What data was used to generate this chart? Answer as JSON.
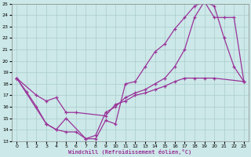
{
  "xlabel": "Windchill (Refroidissement éolien,°C)",
  "xlim": [
    -0.5,
    23.5
  ],
  "ylim": [
    13,
    25
  ],
  "xticks": [
    0,
    1,
    2,
    3,
    4,
    5,
    6,
    7,
    8,
    9,
    10,
    11,
    12,
    13,
    14,
    15,
    16,
    17,
    18,
    19,
    20,
    21,
    22,
    23
  ],
  "yticks": [
    13,
    14,
    15,
    16,
    17,
    18,
    19,
    20,
    21,
    22,
    23,
    24,
    25
  ],
  "bg_color": "#cce8e8",
  "line_color": "#993399",
  "grid_color": "#aacccc",
  "line1_x": [
    0,
    1,
    2,
    3,
    4,
    5,
    6,
    7,
    8,
    9,
    10,
    11,
    12,
    13,
    14,
    15,
    16,
    17,
    18,
    19,
    20,
    21,
    22,
    23
  ],
  "line1_y": [
    18.5,
    17.3,
    16.0,
    14.5,
    14.0,
    13.8,
    13.8,
    13.2,
    13.2,
    14.8,
    14.5,
    18.0,
    18.2,
    19.5,
    20.8,
    21.5,
    22.8,
    23.8,
    24.8,
    25.2,
    24.8,
    22.0,
    19.5,
    18.2
  ],
  "line2_x": [
    0,
    2,
    3,
    4,
    5,
    6,
    9,
    10,
    11,
    12,
    13,
    14,
    15,
    16,
    17,
    18,
    19,
    20,
    23
  ],
  "line2_y": [
    18.5,
    17.0,
    16.5,
    16.8,
    15.5,
    15.5,
    15.2,
    16.2,
    16.5,
    17.0,
    17.2,
    17.5,
    17.8,
    18.2,
    18.5,
    18.5,
    18.5,
    18.5,
    18.2
  ],
  "line3_x": [
    0,
    3,
    4,
    5,
    7,
    8,
    9,
    10,
    11,
    12,
    13,
    14,
    15,
    16,
    17,
    18,
    19,
    20,
    21,
    22,
    23
  ],
  "line3_y": [
    18.5,
    14.5,
    14.0,
    15.0,
    13.2,
    13.5,
    15.5,
    16.0,
    16.8,
    17.2,
    17.5,
    18.0,
    18.5,
    19.5,
    21.0,
    23.8,
    25.2,
    23.8,
    23.8,
    23.8,
    18.2
  ]
}
